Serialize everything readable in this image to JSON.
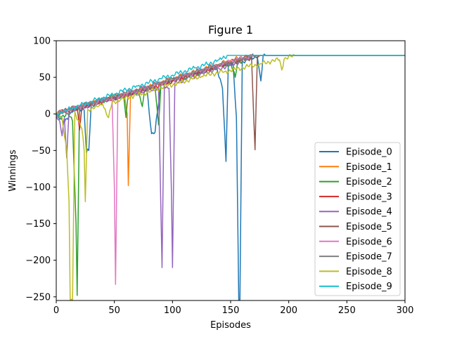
{
  "chart_data": {
    "type": "line",
    "title": "Figure 1",
    "xlabel": "Episodes",
    "ylabel": "Winnings",
    "xlim": [
      0,
      300
    ],
    "ylim": [
      -255,
      100
    ],
    "xticks": [
      0,
      50,
      100,
      150,
      200,
      250,
      300
    ],
    "yticks": [
      -250,
      -200,
      -150,
      -100,
      -50,
      0,
      50,
      100
    ],
    "xtick_labels": [
      "0",
      "50",
      "100",
      "150",
      "200",
      "250",
      "300"
    ],
    "ytick_labels": [
      "−250",
      "−200",
      "−150",
      "−100",
      "−50",
      "0",
      "50",
      "100"
    ],
    "grid": false,
    "legend_position": "bottom-right",
    "plateau": 80,
    "series": [
      {
        "name": "Episode_0",
        "color": "#1f77b4",
        "rise_end": 180,
        "points": [
          [
            0,
            0
          ],
          [
            2,
            -5
          ],
          [
            6,
            -12
          ],
          [
            11,
            -2
          ],
          [
            15,
            5
          ],
          [
            20,
            8
          ],
          [
            24,
            5
          ],
          [
            26,
            -53
          ],
          [
            28,
            -50
          ],
          [
            30,
            12
          ],
          [
            40,
            18
          ],
          [
            50,
            22
          ],
          [
            60,
            26
          ],
          [
            70,
            30
          ],
          [
            78,
            35
          ],
          [
            82,
            -27
          ],
          [
            85,
            -25
          ],
          [
            90,
            42
          ],
          [
            100,
            46
          ],
          [
            110,
            52
          ],
          [
            120,
            56
          ],
          [
            130,
            60
          ],
          [
            138,
            65
          ],
          [
            143,
            35
          ],
          [
            146,
            -65
          ],
          [
            148,
            68
          ],
          [
            152,
            70
          ],
          [
            155,
            -5
          ],
          [
            157,
            -255
          ],
          [
            158,
            -255
          ],
          [
            160,
            72
          ],
          [
            165,
            74
          ],
          [
            170,
            76
          ],
          [
            173,
            78
          ],
          [
            176,
            45
          ],
          [
            178,
            80
          ],
          [
            180,
            80
          ],
          [
            300,
            80
          ]
        ]
      },
      {
        "name": "Episode_1",
        "color": "#ff7f0e",
        "rise_end": 165,
        "points": [
          [
            0,
            0
          ],
          [
            5,
            4
          ],
          [
            10,
            6
          ],
          [
            20,
            10
          ],
          [
            30,
            15
          ],
          [
            40,
            20
          ],
          [
            50,
            24
          ],
          [
            58,
            28
          ],
          [
            61,
            0
          ],
          [
            62,
            -98
          ],
          [
            64,
            30
          ],
          [
            70,
            33
          ],
          [
            80,
            38
          ],
          [
            90,
            43
          ],
          [
            100,
            48
          ],
          [
            110,
            53
          ],
          [
            120,
            58
          ],
          [
            130,
            63
          ],
          [
            140,
            68
          ],
          [
            150,
            73
          ],
          [
            160,
            77
          ],
          [
            165,
            80
          ],
          [
            300,
            80
          ]
        ]
      },
      {
        "name": "Episode_2",
        "color": "#2ca02c",
        "rise_end": 170,
        "points": [
          [
            0,
            0
          ],
          [
            5,
            -3
          ],
          [
            10,
            0
          ],
          [
            14,
            -10
          ],
          [
            17,
            -150
          ],
          [
            18,
            -248
          ],
          [
            20,
            10
          ],
          [
            30,
            14
          ],
          [
            40,
            18
          ],
          [
            50,
            22
          ],
          [
            58,
            25
          ],
          [
            60,
            -5
          ],
          [
            62,
            28
          ],
          [
            70,
            31
          ],
          [
            74,
            10
          ],
          [
            76,
            33
          ],
          [
            85,
            37
          ],
          [
            88,
            -15
          ],
          [
            90,
            40
          ],
          [
            100,
            45
          ],
          [
            110,
            50
          ],
          [
            120,
            55
          ],
          [
            130,
            60
          ],
          [
            140,
            65
          ],
          [
            150,
            69
          ],
          [
            154,
            50
          ],
          [
            156,
            71
          ],
          [
            165,
            76
          ],
          [
            170,
            80
          ],
          [
            300,
            80
          ]
        ]
      },
      {
        "name": "Episode_3",
        "color": "#d62728",
        "rise_end": 168,
        "points": [
          [
            0,
            0
          ],
          [
            5,
            3
          ],
          [
            10,
            5
          ],
          [
            18,
            8
          ],
          [
            20,
            -22
          ],
          [
            22,
            9
          ],
          [
            30,
            13
          ],
          [
            40,
            17
          ],
          [
            50,
            21
          ],
          [
            60,
            26
          ],
          [
            70,
            30
          ],
          [
            80,
            35
          ],
          [
            90,
            40
          ],
          [
            100,
            45
          ],
          [
            110,
            50
          ],
          [
            120,
            55
          ],
          [
            130,
            60
          ],
          [
            140,
            65
          ],
          [
            150,
            70
          ],
          [
            160,
            75
          ],
          [
            168,
            80
          ],
          [
            300,
            80
          ]
        ]
      },
      {
        "name": "Episode_4",
        "color": "#9467bd",
        "rise_end": 170,
        "points": [
          [
            0,
            0
          ],
          [
            3,
            -10
          ],
          [
            5,
            -30
          ],
          [
            7,
            -5
          ],
          [
            9,
            -60
          ],
          [
            11,
            3
          ],
          [
            20,
            8
          ],
          [
            30,
            12
          ],
          [
            40,
            17
          ],
          [
            50,
            21
          ],
          [
            60,
            25
          ],
          [
            70,
            29
          ],
          [
            80,
            33
          ],
          [
            88,
            36
          ],
          [
            90,
            -130
          ],
          [
            91,
            -210
          ],
          [
            93,
            38
          ],
          [
            97,
            35
          ],
          [
            99,
            -100
          ],
          [
            100,
            -210
          ],
          [
            102,
            42
          ],
          [
            110,
            47
          ],
          [
            120,
            52
          ],
          [
            130,
            57
          ],
          [
            140,
            62
          ],
          [
            150,
            67
          ],
          [
            160,
            73
          ],
          [
            170,
            80
          ],
          [
            300,
            80
          ]
        ]
      },
      {
        "name": "Episode_5",
        "color": "#8c564b",
        "rise_end": 175,
        "points": [
          [
            0,
            0
          ],
          [
            10,
            5
          ],
          [
            20,
            9
          ],
          [
            30,
            14
          ],
          [
            40,
            18
          ],
          [
            50,
            23
          ],
          [
            60,
            27
          ],
          [
            70,
            32
          ],
          [
            80,
            36
          ],
          [
            90,
            41
          ],
          [
            100,
            46
          ],
          [
            110,
            51
          ],
          [
            120,
            56
          ],
          [
            130,
            61
          ],
          [
            140,
            66
          ],
          [
            150,
            70
          ],
          [
            160,
            74
          ],
          [
            168,
            77
          ],
          [
            170,
            -10
          ],
          [
            171,
            -49
          ],
          [
            173,
            78
          ],
          [
            175,
            80
          ],
          [
            300,
            80
          ]
        ]
      },
      {
        "name": "Episode_6",
        "color": "#e377c2",
        "rise_end": 170,
        "points": [
          [
            0,
            0
          ],
          [
            10,
            5
          ],
          [
            20,
            10
          ],
          [
            30,
            15
          ],
          [
            40,
            19
          ],
          [
            48,
            22
          ],
          [
            50,
            -100
          ],
          [
            51,
            -233
          ],
          [
            53,
            24
          ],
          [
            60,
            28
          ],
          [
            70,
            32
          ],
          [
            80,
            37
          ],
          [
            90,
            42
          ],
          [
            100,
            47
          ],
          [
            110,
            52
          ],
          [
            120,
            57
          ],
          [
            130,
            62
          ],
          [
            140,
            67
          ],
          [
            150,
            72
          ],
          [
            160,
            76
          ],
          [
            170,
            80
          ],
          [
            300,
            80
          ]
        ]
      },
      {
        "name": "Episode_7",
        "color": "#7f7f7f",
        "rise_end": 172,
        "points": [
          [
            0,
            0
          ],
          [
            10,
            6
          ],
          [
            20,
            10
          ],
          [
            30,
            15
          ],
          [
            40,
            20
          ],
          [
            50,
            24
          ],
          [
            60,
            29
          ],
          [
            70,
            33
          ],
          [
            80,
            38
          ],
          [
            90,
            43
          ],
          [
            100,
            48
          ],
          [
            110,
            53
          ],
          [
            120,
            58
          ],
          [
            130,
            63
          ],
          [
            140,
            67
          ],
          [
            150,
            71
          ],
          [
            160,
            75
          ],
          [
            172,
            80
          ],
          [
            300,
            80
          ]
        ]
      },
      {
        "name": "Episode_8",
        "color": "#bcbd22",
        "rise_end": 205,
        "points": [
          [
            0,
            0
          ],
          [
            5,
            -5
          ],
          [
            9,
            -50
          ],
          [
            11,
            -120
          ],
          [
            12,
            -255
          ],
          [
            14,
            -255
          ],
          [
            16,
            3
          ],
          [
            22,
            -20
          ],
          [
            24,
            -50
          ],
          [
            25,
            -120
          ],
          [
            27,
            6
          ],
          [
            35,
            10
          ],
          [
            40,
            13
          ],
          [
            45,
            -5
          ],
          [
            48,
            15
          ],
          [
            55,
            19
          ],
          [
            65,
            24
          ],
          [
            75,
            28
          ],
          [
            85,
            33
          ],
          [
            95,
            38
          ],
          [
            105,
            42
          ],
          [
            115,
            47
          ],
          [
            125,
            51
          ],
          [
            135,
            55
          ],
          [
            145,
            58
          ],
          [
            155,
            61
          ],
          [
            165,
            65
          ],
          [
            175,
            68
          ],
          [
            185,
            72
          ],
          [
            192,
            74
          ],
          [
            194,
            60
          ],
          [
            196,
            75
          ],
          [
            205,
            80
          ],
          [
            300,
            80
          ]
        ]
      },
      {
        "name": "Episode_9",
        "color": "#17becf",
        "rise_end": 147,
        "points": [
          [
            0,
            0
          ],
          [
            10,
            6
          ],
          [
            20,
            11
          ],
          [
            30,
            17
          ],
          [
            40,
            22
          ],
          [
            50,
            27
          ],
          [
            60,
            33
          ],
          [
            70,
            38
          ],
          [
            80,
            43
          ],
          [
            90,
            48
          ],
          [
            100,
            53
          ],
          [
            110,
            58
          ],
          [
            120,
            63
          ],
          [
            130,
            68
          ],
          [
            140,
            74
          ],
          [
            147,
            80
          ],
          [
            300,
            80
          ]
        ]
      }
    ]
  }
}
